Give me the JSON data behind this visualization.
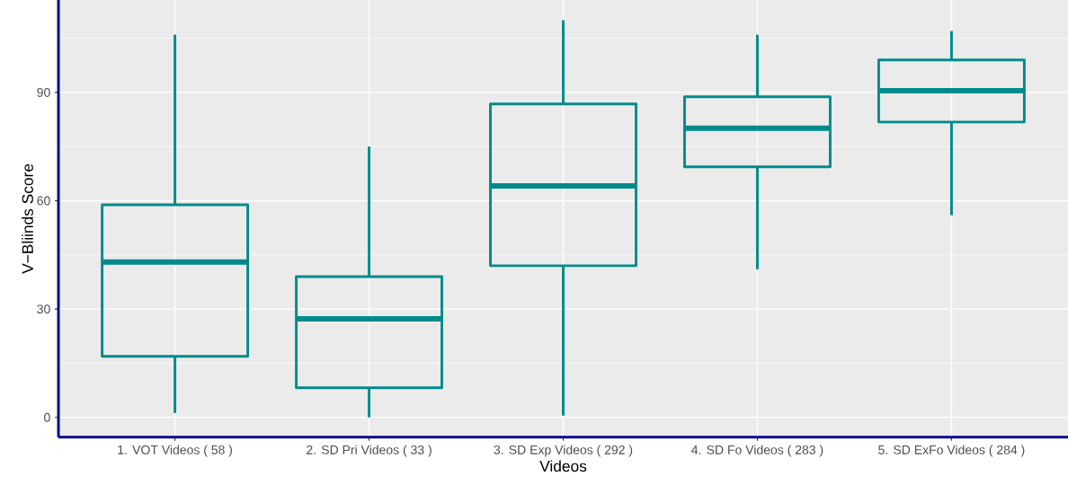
{
  "chart_data": {
    "type": "box",
    "xlabel": "Videos",
    "ylabel": "V−Bliinds Score",
    "categories": [
      "1. VOT Videos  ( 58 )",
      "2. SD Pri Videos  ( 33 )",
      "3. SD Exp Videos  ( 292 )",
      "4. SD Fo Videos  ( 283 )",
      "5. SD ExFo Videos  ( 284 )"
    ],
    "color": "#008b8b",
    "boxes": [
      {
        "low": 1.2,
        "q1": 16.9,
        "median": 43.0,
        "q3": 58.9,
        "high": 106
      },
      {
        "low": 0,
        "q1": 8.2,
        "median": 27.3,
        "q3": 39.0,
        "high": 75
      },
      {
        "low": 0.5,
        "q1": 42.0,
        "median": 64.1,
        "q3": 86.8,
        "high": 110
      },
      {
        "low": 41,
        "q1": 69.4,
        "median": 80.1,
        "q3": 88.8,
        "high": 106
      },
      {
        "low": 56,
        "q1": 81.8,
        "median": 90.5,
        "q3": 99.0,
        "high": 107
      }
    ],
    "ylim": [
      -5.5,
      115.6
    ],
    "yticks": [
      0,
      30,
      60,
      90
    ],
    "grid": true
  }
}
